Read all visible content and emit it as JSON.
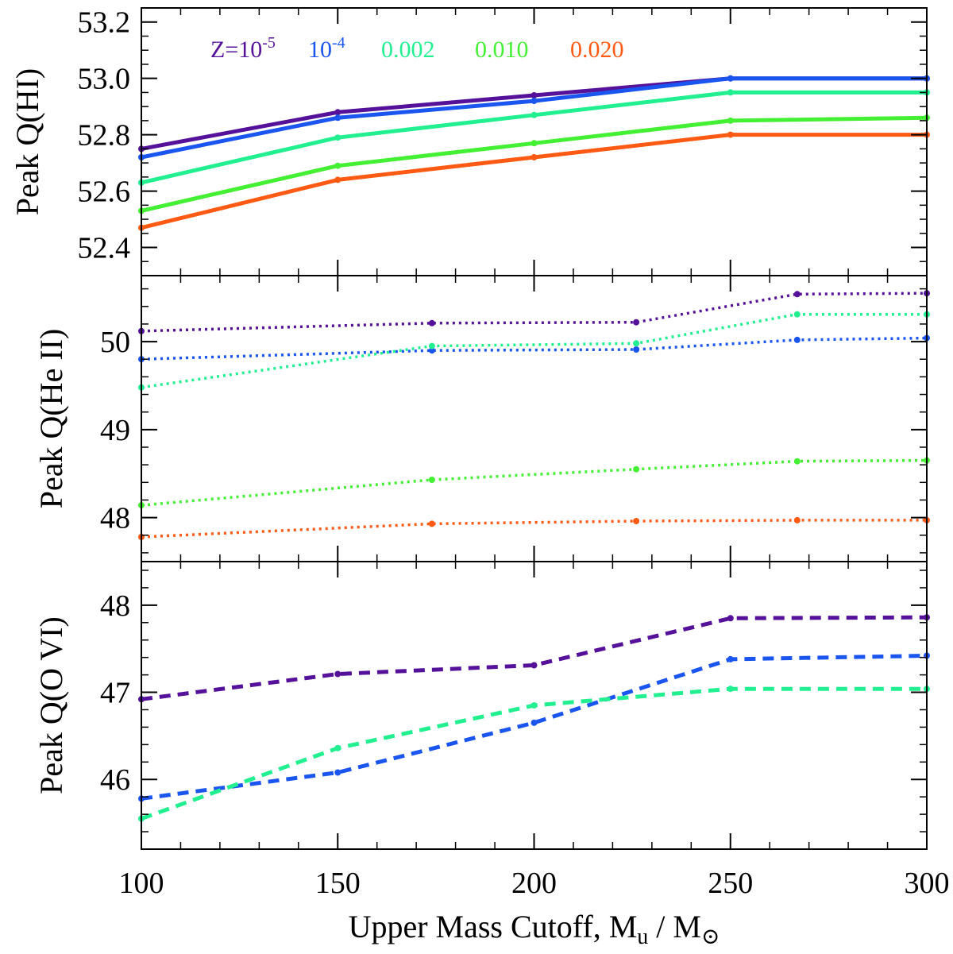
{
  "chart_data": [
    {
      "type": "line",
      "panel": "top",
      "ylabel": "Peak Q(HI)",
      "xlim": [
        100,
        300
      ],
      "ylim": [
        52.3,
        53.25
      ],
      "yticks": [
        52.4,
        52.6,
        52.8,
        53.0,
        53.2
      ],
      "ytick_labels": [
        "52.4",
        "52.6",
        "52.8",
        "53.0",
        "53.2"
      ],
      "yminor_step": 0.05,
      "line_style": "solid",
      "series": [
        {
          "name": "Z=10^-5",
          "color": "#55119a",
          "x": [
            100,
            150,
            200,
            250,
            300
          ],
          "values": [
            52.75,
            52.88,
            52.94,
            53.0,
            53.0
          ]
        },
        {
          "name": "10^-4",
          "color": "#1a55f0",
          "x": [
            100,
            150,
            200,
            250,
            300
          ],
          "values": [
            52.72,
            52.86,
            52.92,
            53.0,
            53.0
          ]
        },
        {
          "name": "0.002",
          "color": "#22f090",
          "x": [
            100,
            150,
            200,
            250,
            300
          ],
          "values": [
            52.63,
            52.79,
            52.87,
            52.95,
            52.95
          ]
        },
        {
          "name": "0.010",
          "color": "#44f033",
          "x": [
            100,
            150,
            200,
            250,
            300
          ],
          "values": [
            52.53,
            52.69,
            52.77,
            52.85,
            52.86
          ]
        },
        {
          "name": "0.020",
          "color": "#ff5a14",
          "x": [
            100,
            150,
            200,
            250,
            300
          ],
          "values": [
            52.47,
            52.64,
            52.72,
            52.8,
            52.8
          ]
        }
      ],
      "legend": [
        {
          "base": "Z=10",
          "exp": "-5",
          "color": "#55119a"
        },
        {
          "base": "10",
          "exp": "-4",
          "color": "#1a55f0"
        },
        {
          "base": "0.002",
          "exp": "",
          "color": "#22f090"
        },
        {
          "base": "0.010",
          "exp": "",
          "color": "#44f033"
        },
        {
          "base": "0.020",
          "exp": "",
          "color": "#ff5a14"
        }
      ]
    },
    {
      "type": "line",
      "panel": "middle",
      "ylabel": "Peak Q(He II)",
      "xlim": [
        100,
        300
      ],
      "ylim": [
        47.5,
        50.75
      ],
      "yticks": [
        48,
        49,
        50
      ],
      "ytick_labels": [
        "48",
        "49",
        "50"
      ],
      "yminor_step": 0.2,
      "line_style": "dotted",
      "series": [
        {
          "name": "Z=10^-5",
          "color": "#55119a",
          "x": [
            100,
            174,
            226,
            267,
            300
          ],
          "values": [
            50.12,
            50.21,
            50.22,
            50.54,
            50.55
          ]
        },
        {
          "name": "10^-4",
          "color": "#1a55f0",
          "x": [
            100,
            174,
            226,
            267,
            300
          ],
          "values": [
            49.8,
            49.9,
            49.91,
            50.02,
            50.04
          ]
        },
        {
          "name": "0.002",
          "color": "#22f090",
          "x": [
            100,
            174,
            226,
            267,
            300
          ],
          "values": [
            49.48,
            49.95,
            49.98,
            50.31,
            50.31
          ]
        },
        {
          "name": "0.010",
          "color": "#44f033",
          "x": [
            100,
            174,
            226,
            267,
            300
          ],
          "values": [
            48.14,
            48.43,
            48.55,
            48.64,
            48.65
          ]
        },
        {
          "name": "0.020",
          "color": "#ff5a14",
          "x": [
            100,
            174,
            226,
            267,
            300
          ],
          "values": [
            47.78,
            47.93,
            47.96,
            47.97,
            47.97
          ]
        }
      ]
    },
    {
      "type": "line",
      "panel": "bottom",
      "ylabel": "Peak Q(O VI)",
      "xlabel_base": "Upper Mass Cutoff, M",
      "xlabel_sub_u": "u",
      "xlabel_mid": " / M",
      "xlabel_sun": "⊙",
      "xlim": [
        100,
        300
      ],
      "ylim": [
        45.2,
        48.5
      ],
      "yticks": [
        46,
        47,
        48
      ],
      "ytick_labels": [
        "46",
        "47",
        "48"
      ],
      "yminor_step": 0.2,
      "xticks": [
        100,
        150,
        200,
        250,
        300
      ],
      "xtick_labels": [
        "100",
        "150",
        "200",
        "250",
        "300"
      ],
      "xminor_step": 10,
      "line_style": "dashed",
      "series": [
        {
          "name": "Z=10^-5",
          "color": "#55119a",
          "x": [
            100,
            150,
            200,
            250,
            300
          ],
          "values": [
            46.92,
            47.21,
            47.31,
            47.85,
            47.86
          ]
        },
        {
          "name": "10^-4",
          "color": "#1a55f0",
          "x": [
            100,
            150,
            200,
            250,
            300
          ],
          "values": [
            45.78,
            46.08,
            46.65,
            47.38,
            47.42
          ]
        },
        {
          "name": "0.002",
          "color": "#22f090",
          "x": [
            100,
            150,
            200,
            250,
            300
          ],
          "values": [
            45.55,
            46.36,
            46.85,
            47.04,
            47.04
          ]
        }
      ]
    }
  ]
}
